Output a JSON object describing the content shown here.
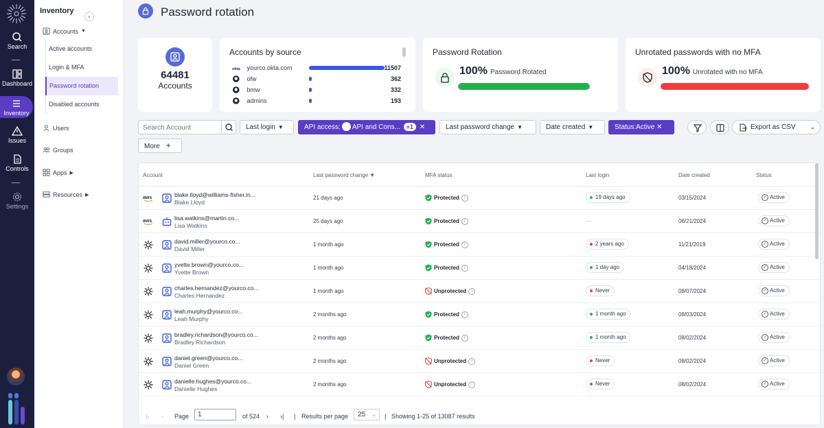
{
  "rail": {
    "items": [
      {
        "label": "Search",
        "icon": "search-icon"
      },
      {
        "label": "Dashboard",
        "icon": "dashboard-icon"
      },
      {
        "label": "Inventory",
        "icon": "inventory-icon",
        "active": true
      },
      {
        "label": "Issues",
        "icon": "warning-icon"
      },
      {
        "label": "Controls",
        "icon": "document-icon"
      },
      {
        "label": "Settings",
        "icon": "gear-icon"
      }
    ]
  },
  "sidebar": {
    "title": "Inventory",
    "accounts_label": "Accounts",
    "links": [
      "Active accounts",
      "Login & MFA",
      "Password rotation",
      "Disabled accounts"
    ],
    "users_label": "Users",
    "groups_label": "Groups",
    "apps_label": "Apps",
    "resources_label": "Resources"
  },
  "page": {
    "title": "Password rotation"
  },
  "cards": {
    "total": {
      "value": "64481",
      "label": "Accounts"
    },
    "by_source": {
      "title": "Accounts by source",
      "rows": [
        {
          "name": "yourco.okta.com",
          "value": "11507",
          "share": 1.0,
          "icon": "okta-icon"
        },
        {
          "name": "ofw",
          "value": "362",
          "share": 0.031,
          "icon": "github-icon"
        },
        {
          "name": "bmw",
          "value": "332",
          "share": 0.029,
          "icon": "github-icon"
        },
        {
          "name": "admins",
          "value": "193",
          "share": 0.017,
          "icon": "github-icon"
        }
      ]
    },
    "rotation": {
      "title": "Password Rotation",
      "percent": "100%",
      "label": "Password Rotated",
      "fill": 1.0,
      "color": "#22b24c"
    },
    "no_mfa": {
      "title": "Unrotated passwords with no MFA",
      "percent": "100%",
      "label": "Unrotated with no MFA",
      "fill": 1.0,
      "color": "#ee3d3d"
    }
  },
  "filters": {
    "search_placeholder": "Search Account",
    "last_login": "Last login",
    "api_access_prefix": "API access:",
    "api_access_value": "API and Cons...",
    "api_access_more": "+1",
    "last_password_change": "Last password change",
    "date_created": "Date created",
    "status": "Status:Active",
    "more": "More",
    "export": "Export as CSV"
  },
  "table": {
    "columns": [
      "Account",
      "Last password change",
      "MFA status",
      "Last login",
      "Date created",
      "Status"
    ],
    "rows": [
      {
        "source": "aws",
        "email": "blake.lloyd@williams-fisher.in...",
        "name": "Blake Lloyd",
        "pwd_change": "21 days ago",
        "mfa": "Protected",
        "login": "19 days ago",
        "login_color": "#22b24c",
        "created": "03/15/2024",
        "status": "Active"
      },
      {
        "source": "aws",
        "email": "lisa.watkins@martin.co...",
        "name": "Lisa Watkins",
        "pwd_change": "25 days ago",
        "mfa": "Protected",
        "login": "—",
        "login_color": "",
        "created": "06/21/2024",
        "status": "Active"
      },
      {
        "source": "okta",
        "email": "david.miller@yourco.co...",
        "name": "David Miller",
        "pwd_change": "1 month ago",
        "mfa": "Protected",
        "login": "2 years ago",
        "login_color": "#ee3d3d",
        "created": "11/21/2019",
        "status": "Active"
      },
      {
        "source": "okta",
        "email": "yvette.brown@yourco.co...",
        "name": "Yvette Brown",
        "pwd_change": "1 month ago",
        "mfa": "Protected",
        "login": "1 day ago",
        "login_color": "#22b24c",
        "created": "04/18/2024",
        "status": "Active"
      },
      {
        "source": "okta",
        "email": "charles.hernandez@yourco.co...",
        "name": "Charles Hernandez",
        "pwd_change": "1 month ago",
        "mfa": "Unprotected",
        "login": "Never",
        "login_color": "#ee3d3d",
        "created": "08/07/2024",
        "status": "Active"
      },
      {
        "source": "okta",
        "email": "leah.murphy@yourco.co...",
        "name": "Leah Murphy",
        "pwd_change": "2 months ago",
        "mfa": "Protected",
        "login": "1 month ago",
        "login_color": "#22b24c",
        "created": "08/03/2024",
        "status": "Active"
      },
      {
        "source": "okta",
        "email": "bradley.richardson@yourco.co...",
        "name": "Bradley Richardson",
        "pwd_change": "2 months ago",
        "mfa": "Protected",
        "login": "1 month ago",
        "login_color": "#22b24c",
        "created": "08/02/2024",
        "status": "Active"
      },
      {
        "source": "okta",
        "email": "daniel.green@yourco.co...",
        "name": "Daniel Green",
        "pwd_change": "2 months ago",
        "mfa": "Unprotected",
        "login": "Never",
        "login_color": "#ee3d3d",
        "created": "08/02/2024",
        "status": "Active"
      },
      {
        "source": "okta",
        "email": "danielle.hughes@yourco.co...",
        "name": "Danielle Hughes",
        "pwd_change": "2 months ago",
        "mfa": "Unprotected",
        "login": "Never",
        "login_color": "#ee3d3d",
        "created": "08/02/2024",
        "status": "Active"
      }
    ]
  },
  "pager": {
    "page_label": "Page",
    "page_value": "1",
    "of_label": "of 524",
    "per_page_label": "Results per page",
    "per_page_value": "25",
    "showing": "Showing 1-25 of 13087 results",
    "sep": "|"
  },
  "colors": {
    "accent": "#5b3cc4",
    "rail": "#1c1e3d",
    "green": "#22b24c",
    "red": "#ee3d3d",
    "blue": "#3a5bd9"
  }
}
